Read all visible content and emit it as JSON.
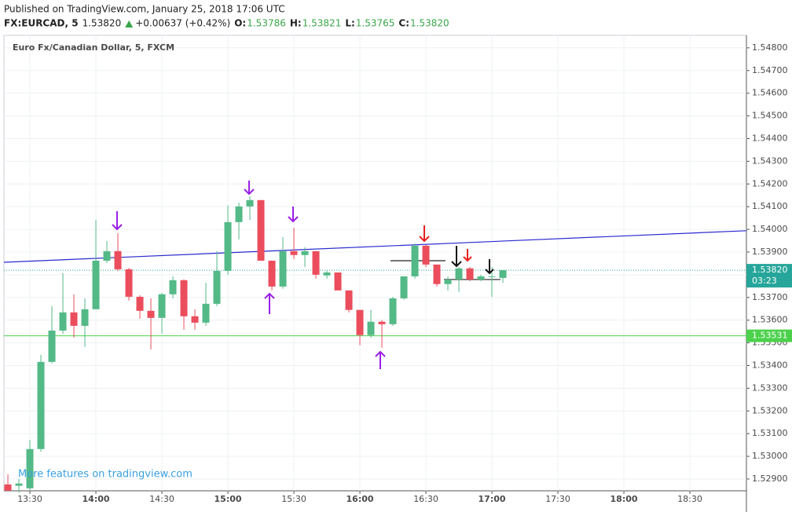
{
  "chart_data": {
    "type": "candlestick",
    "header": {
      "published": "Published on TradingView.com, January 25, 2018 17:06 UTC",
      "symbol": "FX:EURCAD, 5",
      "price": "1.53820",
      "change": "+0.00637 (+0.42%)",
      "ohlc": [
        {
          "label": "O:",
          "value": "1.53786"
        },
        {
          "label": "H:",
          "value": "1.53821"
        },
        {
          "label": "L:",
          "value": "1.53765"
        },
        {
          "label": "C:",
          "value": "1.53820"
        }
      ]
    },
    "title": "Euro Fx/Canadian Dollar, 5, FXCM",
    "watermark": "More features on tradingview.com",
    "up_color": "#53b987",
    "down_color": "#eb4d5c",
    "x": [
      800,
      805,
      810,
      815,
      820,
      825,
      830,
      835,
      840,
      845,
      850,
      855,
      860,
      865,
      870,
      875,
      880,
      885,
      890,
      895,
      900,
      905,
      910,
      915,
      920,
      925,
      930,
      935,
      940,
      945,
      950,
      955,
      960,
      965,
      970,
      975,
      980,
      985,
      990,
      995,
      1000,
      1005,
      1010,
      1015,
      1020,
      1025
    ],
    "open": [
      1.52876,
      1.5287,
      1.52859,
      1.53032,
      1.53416,
      1.53554,
      1.53634,
      1.53575,
      1.53648,
      1.53862,
      1.53904,
      1.53824,
      1.53703,
      1.53641,
      1.5361,
      1.53714,
      1.53776,
      1.53617,
      1.53589,
      1.53672,
      1.53817,
      1.54032,
      1.54101,
      1.54129,
      1.53862,
      1.53748,
      1.53904,
      1.53887,
      1.53904,
      1.53797,
      1.5381,
      1.53731,
      1.53645,
      1.53534,
      1.53593,
      1.53582,
      1.53696,
      1.53793,
      1.53928,
      1.53845,
      1.53759,
      1.53779,
      1.53828,
      1.53779,
      1.5379,
      1.53786
    ],
    "high": [
      1.52921,
      1.529,
      1.53073,
      1.53447,
      1.53662,
      1.53807,
      1.53713,
      1.53696,
      1.54042,
      1.53948,
      1.53983,
      1.5383,
      1.5371,
      1.53696,
      1.5372,
      1.53793,
      1.5378,
      1.53648,
      1.53765,
      1.53904,
      1.54105,
      1.54118,
      1.54146,
      1.54129,
      1.53862,
      1.53966,
      1.54007,
      1.53921,
      1.53904,
      1.53817,
      1.5381,
      1.53731,
      1.53645,
      1.53645,
      1.536,
      1.53703,
      1.53793,
      1.53938,
      1.53931,
      1.53845,
      1.53793,
      1.53834,
      1.53834,
      1.538,
      1.53834,
      1.53821
    ],
    "low": [
      1.52848,
      1.5284,
      1.52849,
      1.5302,
      1.53409,
      1.5354,
      1.53523,
      1.53482,
      1.53648,
      1.53852,
      1.53817,
      1.53686,
      1.53606,
      1.53471,
      1.53541,
      1.53696,
      1.53558,
      1.53558,
      1.53575,
      1.53662,
      1.538,
      1.53956,
      1.54042,
      1.53862,
      1.53731,
      1.53738,
      1.53869,
      1.53834,
      1.53783,
      1.53783,
      1.53731,
      1.53634,
      1.53489,
      1.53523,
      1.53478,
      1.53575,
      1.5369,
      1.53783,
      1.53834,
      1.53748,
      1.53731,
      1.53724,
      1.53772,
      1.53772,
      1.53703,
      1.53765
    ],
    "close": [
      1.52848,
      1.5288,
      1.53032,
      1.53416,
      1.53554,
      1.53634,
      1.53575,
      1.53648,
      1.53862,
      1.53904,
      1.53824,
      1.53703,
      1.53641,
      1.5361,
      1.53714,
      1.53776,
      1.53617,
      1.53589,
      1.53672,
      1.53817,
      1.54032,
      1.54101,
      1.54129,
      1.53862,
      1.53748,
      1.53904,
      1.53887,
      1.53904,
      1.538,
      1.5381,
      1.53731,
      1.53645,
      1.53534,
      1.53593,
      1.53582,
      1.53696,
      1.53793,
      1.53928,
      1.53845,
      1.53759,
      1.53779,
      1.53828,
      1.53779,
      1.53793,
      1.53793,
      1.5382
    ],
    "xlim": [
      798.2,
      1135.7
    ],
    "xticks": [
      {
        "value": 810,
        "label": "13:30"
      },
      {
        "value": 840,
        "label": "14:00"
      },
      {
        "value": 870,
        "label": "14:30"
      },
      {
        "value": 900,
        "label": "15:00"
      },
      {
        "value": 930,
        "label": "15:30"
      },
      {
        "value": 960,
        "label": "16:00"
      },
      {
        "value": 990,
        "label": "16:30"
      },
      {
        "value": 1020,
        "label": "17:00"
      },
      {
        "value": 1050,
        "label": "17:30"
      },
      {
        "value": 1080,
        "label": "18:00"
      },
      {
        "value": 1110,
        "label": "18:30"
      }
    ],
    "ylim": [
      1.52848,
      1.54855
    ],
    "yticks": [
      {
        "value": 1.548,
        "label": "1.54800"
      },
      {
        "value": 1.547,
        "label": "1.54700"
      },
      {
        "value": 1.546,
        "label": "1.54600"
      },
      {
        "value": 1.545,
        "label": "1.54500"
      },
      {
        "value": 1.544,
        "label": "1.54400"
      },
      {
        "value": 1.543,
        "label": "1.54300"
      },
      {
        "value": 1.542,
        "label": "1.54200"
      },
      {
        "value": 1.541,
        "label": "1.54100"
      },
      {
        "value": 1.54,
        "label": "1.54000"
      },
      {
        "value": 1.539,
        "label": "1.53900"
      },
      {
        "value": 1.538,
        "label": "1.53800"
      },
      {
        "value": 1.537,
        "label": "1.53700"
      },
      {
        "value": 1.536,
        "label": "1.53600"
      },
      {
        "value": 1.535,
        "label": "1.53500"
      },
      {
        "value": 1.534,
        "label": "1.53400"
      },
      {
        "value": 1.533,
        "label": "1.53300"
      },
      {
        "value": 1.532,
        "label": "1.53200"
      },
      {
        "value": 1.531,
        "label": "1.53100"
      },
      {
        "value": 1.53,
        "label": "1.53000"
      },
      {
        "value": 1.529,
        "label": "1.52900"
      }
    ],
    "grid": true,
    "last_price": {
      "value": 1.5382,
      "label": "1.53820",
      "color": "#26a69a",
      "countdown": "03:23"
    },
    "horizontal_line": {
      "value": 1.53531,
      "label": "1.53531",
      "color": "#4cd14c"
    },
    "drawn_lines": [
      {
        "color": "#2a2ad0",
        "x": [
          798.2,
          1135.7
        ],
        "y": [
          1.53855,
          1.53994
        ]
      },
      {
        "color": "#222222",
        "x": [
          973.9,
          998.9
        ],
        "y": [
          1.53862,
          1.53862
        ]
      },
      {
        "color": "#222222",
        "x": [
          998.2,
          1023.9
        ],
        "y": [
          1.53779,
          1.53779
        ]
      }
    ]
  }
}
